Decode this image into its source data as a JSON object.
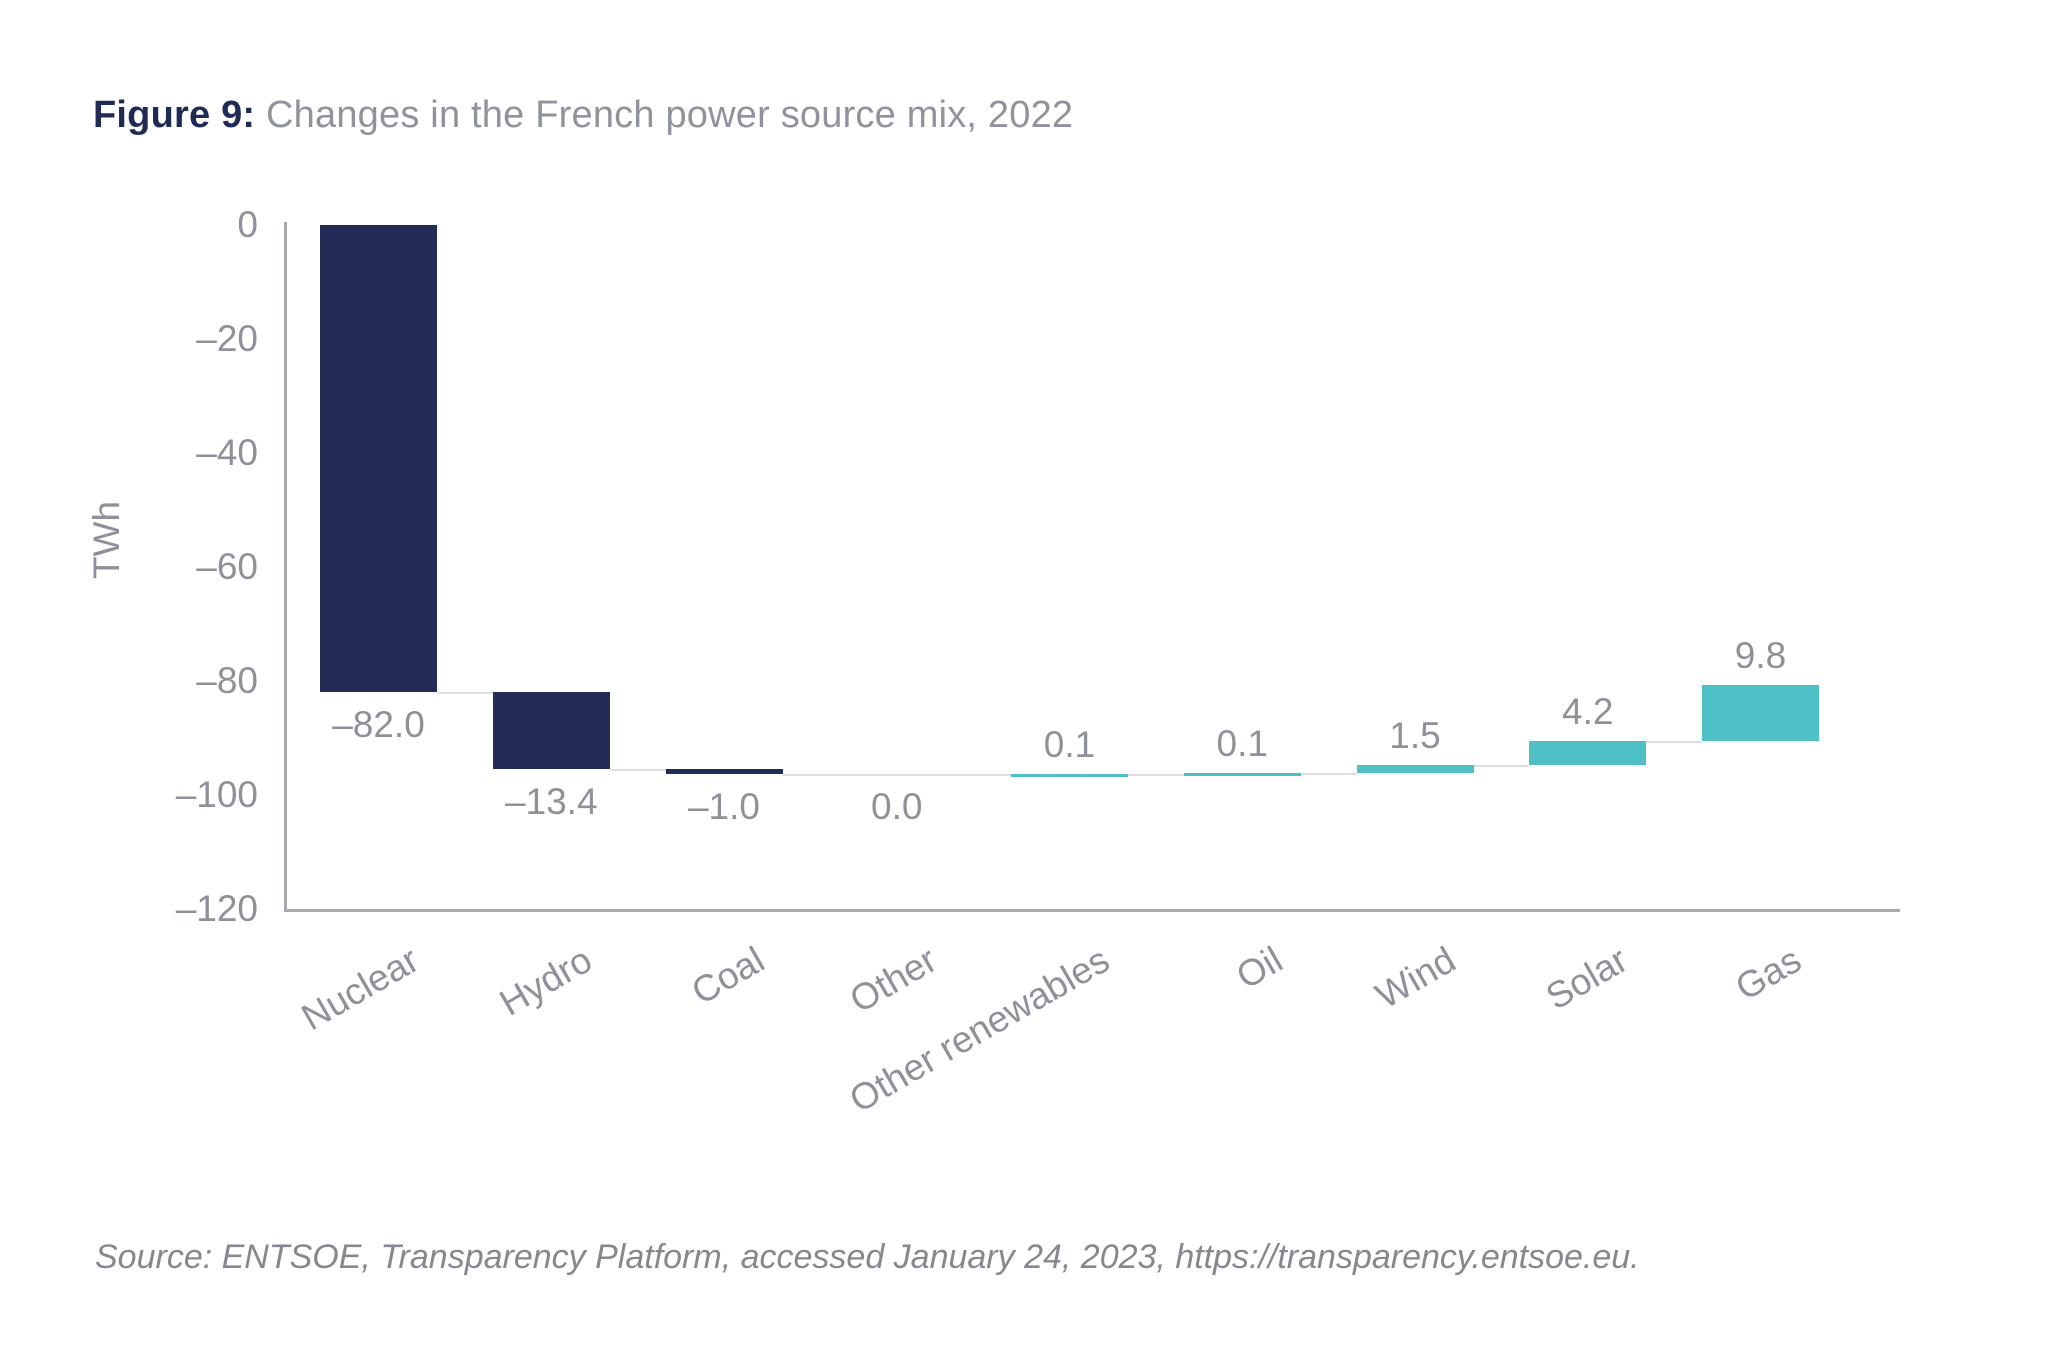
{
  "header": {
    "figure_label": "Figure 9:",
    "caption": "Changes in the French power source mix, 2022"
  },
  "footer": {
    "source": "Source: ENTSOE, Transparency Platform, accessed January 24, 2023, https://transparency.entsoe.eu."
  },
  "chart_data": {
    "type": "bar",
    "subtype": "waterfall",
    "title": "Changes in the French power source mix, 2022",
    "xlabel": "",
    "ylabel": "TWh",
    "ylim": [
      -120,
      0
    ],
    "grid": false,
    "legend": "none",
    "yticks": [
      0,
      -20,
      -40,
      -60,
      -80,
      -100,
      -120
    ],
    "ytick_labels": [
      "0",
      "–20",
      "–40",
      "–60",
      "–80",
      "–100",
      "–120"
    ],
    "categories": [
      "Nuclear",
      "Hydro",
      "Coal",
      "Other",
      "Other renewables",
      "Oil",
      "Wind",
      "Solar",
      "Gas"
    ],
    "values": [
      -82.0,
      -13.4,
      -1.0,
      0.0,
      0.1,
      0.1,
      1.5,
      4.2,
      9.8
    ],
    "value_labels": [
      "–82.0",
      "–13.4",
      "–1.0",
      "0.0",
      "0.1",
      "0.1",
      "1.5",
      "4.2",
      "9.8"
    ],
    "cumulative_end": [
      -82.0,
      -95.4,
      -96.4,
      -96.4,
      -96.3,
      -96.2,
      -94.7,
      -90.5,
      -80.7
    ],
    "colors": {
      "negative_bar": "#232C56",
      "positive_bar": "#4FC0C6",
      "text_gray": "#8E9199",
      "axis_gray": "#A6A9AF",
      "connector_gray": "#DCDDE0",
      "title_navy": "#1F2A55"
    }
  }
}
